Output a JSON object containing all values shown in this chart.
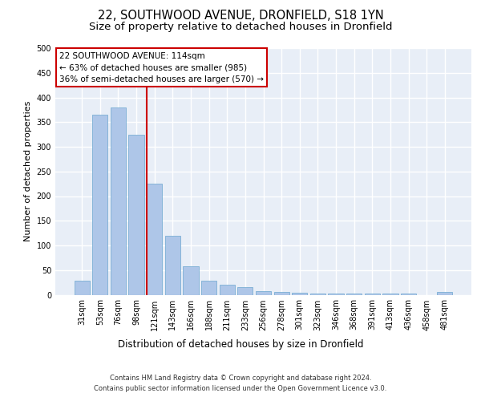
{
  "title": "22, SOUTHWOOD AVENUE, DRONFIELD, S18 1YN",
  "subtitle": "Size of property relative to detached houses in Dronfield",
  "xlabel": "Distribution of detached houses by size in Dronfield",
  "ylabel": "Number of detached properties",
  "categories": [
    "31sqm",
    "53sqm",
    "76sqm",
    "98sqm",
    "121sqm",
    "143sqm",
    "166sqm",
    "188sqm",
    "211sqm",
    "233sqm",
    "256sqm",
    "278sqm",
    "301sqm",
    "323sqm",
    "346sqm",
    "368sqm",
    "391sqm",
    "413sqm",
    "436sqm",
    "458sqm",
    "481sqm"
  ],
  "values": [
    28,
    365,
    380,
    325,
    225,
    120,
    58,
    28,
    20,
    15,
    7,
    5,
    4,
    3,
    3,
    3,
    3,
    3,
    3,
    0,
    5
  ],
  "bar_color": "#aec6e8",
  "bar_edge_color": "#7bafd4",
  "vline_color": "#cc0000",
  "annotation_text": "22 SOUTHWOOD AVENUE: 114sqm\n← 63% of detached houses are smaller (985)\n36% of semi-detached houses are larger (570) →",
  "annotation_box_color": "#ffffff",
  "annotation_box_edge": "#cc0000",
  "ylim": [
    0,
    500
  ],
  "yticks": [
    0,
    50,
    100,
    150,
    200,
    250,
    300,
    350,
    400,
    450,
    500
  ],
  "background_color": "#e8eef7",
  "grid_color": "#ffffff",
  "footer": "Contains HM Land Registry data © Crown copyright and database right 2024.\nContains public sector information licensed under the Open Government Licence v3.0.",
  "title_fontsize": 10.5,
  "subtitle_fontsize": 9.5,
  "xlabel_fontsize": 8.5,
  "ylabel_fontsize": 8,
  "tick_fontsize": 7,
  "annotation_fontsize": 7.5,
  "footer_fontsize": 6
}
